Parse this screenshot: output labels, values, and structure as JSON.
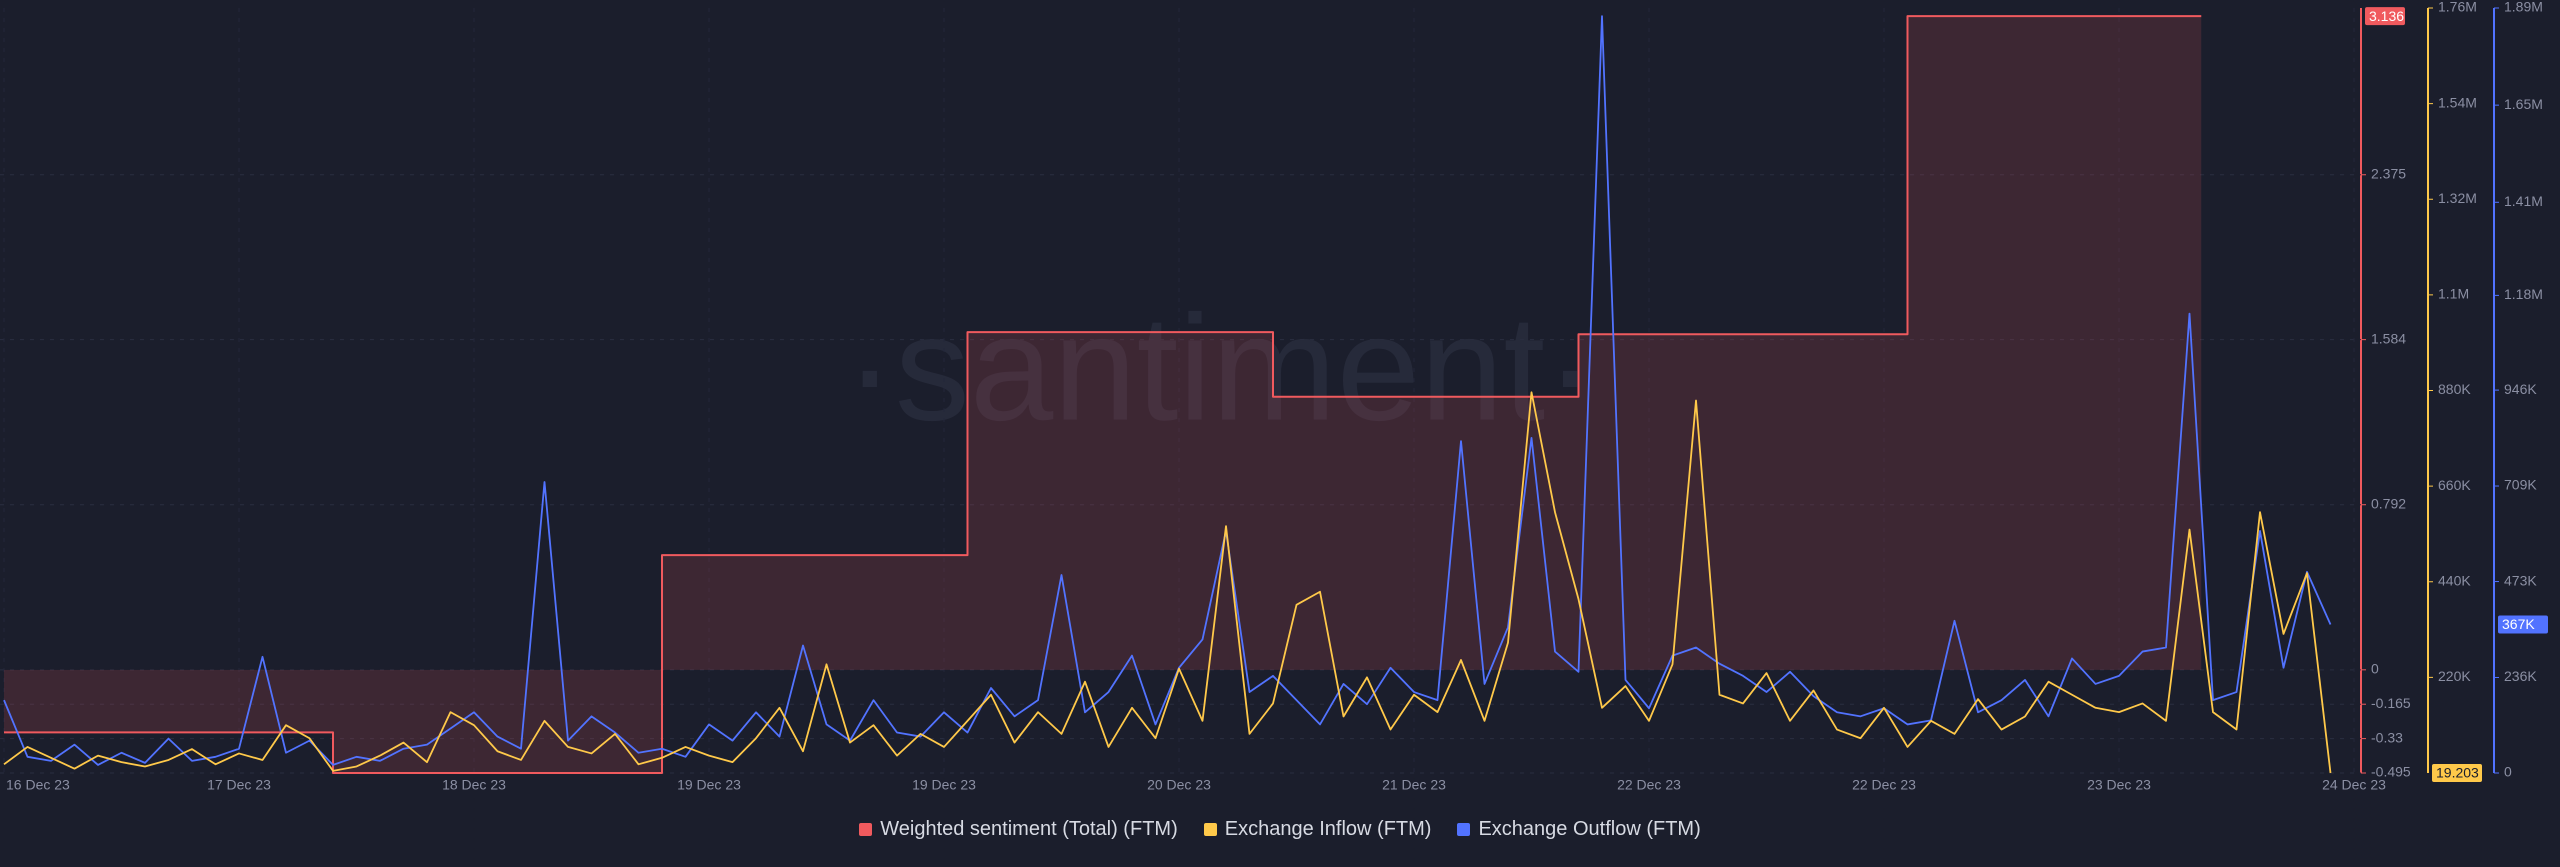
{
  "chart_data": {
    "type": "line",
    "watermark": "·santiment·",
    "categories": [
      "16 Dec 23",
      null,
      null,
      null,
      null,
      null,
      null,
      null,
      null,
      null,
      "17 Dec 23",
      null,
      null,
      null,
      null,
      null,
      null,
      null,
      null,
      null,
      "18 Dec 23",
      null,
      null,
      null,
      null,
      null,
      null,
      null,
      null,
      null,
      "19 Dec 23",
      null,
      null,
      null,
      null,
      null,
      null,
      null,
      null,
      null,
      "19 Dec 23",
      null,
      null,
      null,
      null,
      null,
      null,
      null,
      null,
      null,
      "20 Dec 23",
      null,
      null,
      null,
      null,
      null,
      null,
      null,
      null,
      null,
      "21 Dec 23",
      null,
      null,
      null,
      null,
      null,
      null,
      null,
      null,
      null,
      "22 Dec 23",
      null,
      null,
      null,
      null,
      null,
      null,
      null,
      null,
      null,
      "22 Dec 23",
      null,
      null,
      null,
      null,
      null,
      null,
      null,
      null,
      null,
      "23 Dec 23",
      null,
      null,
      null,
      null,
      null,
      null,
      null,
      null,
      null,
      "24 Dec 23"
    ],
    "ylim": [
      -0.495,
      3.175
    ],
    "yticks": [
      -0.495,
      -0.33,
      -0.165,
      0,
      0.792,
      1.584,
      2.375
    ],
    "y2lim": [
      0,
      1760000
    ],
    "y2ticks": [
      {
        "value": 220000,
        "label": "220K"
      },
      {
        "value": 440000,
        "label": "440K"
      },
      {
        "value": 660000,
        "label": "660K"
      },
      {
        "value": 880000,
        "label": "880K"
      },
      {
        "value": 1100000,
        "label": "1.1M"
      },
      {
        "value": 1320000,
        "label": "1.32M"
      },
      {
        "value": 1540000,
        "label": "1.54M"
      },
      {
        "value": 1760000,
        "label": "1.76M"
      }
    ],
    "y3lim": [
      0,
      1890000
    ],
    "y3ticks": [
      0,
      {
        "value": 236000,
        "label": "236K"
      },
      {
        "value": 473000,
        "label": "473K"
      },
      {
        "value": 709000,
        "label": "709K"
      },
      {
        "value": 946000,
        "label": "946K"
      },
      {
        "value": 1180000,
        "label": "1.18M"
      },
      {
        "value": 1410000,
        "label": "1.41M"
      },
      {
        "value": 1650000,
        "label": "1.65M"
      },
      {
        "value": 1890000,
        "label": "1.89M"
      }
    ],
    "grid": true,
    "series": [
      {
        "name": "Weighted sentiment (Total) (FTM)",
        "color": "#f05a5e",
        "axis": "y",
        "step": true,
        "values": [
          -0.3,
          -0.3,
          -0.3,
          -0.3,
          -0.3,
          -0.3,
          -0.3,
          -0.3,
          -0.3,
          -0.3,
          -0.3,
          -0.3,
          -0.3,
          -0.3,
          -0.495,
          -0.495,
          -0.495,
          -0.495,
          -0.495,
          -0.495,
          -0.495,
          -0.495,
          -0.495,
          -0.495,
          -0.495,
          -0.495,
          -0.495,
          -0.495,
          0.55,
          0.55,
          0.55,
          0.55,
          0.55,
          0.55,
          0.55,
          0.55,
          0.55,
          0.55,
          0.55,
          0.55,
          0.55,
          1.62,
          1.62,
          1.62,
          1.62,
          1.62,
          1.62,
          1.62,
          1.62,
          1.62,
          1.62,
          1.62,
          1.62,
          1.62,
          1.31,
          1.31,
          1.31,
          1.31,
          1.31,
          1.31,
          1.31,
          1.31,
          1.31,
          1.31,
          1.31,
          1.31,
          1.31,
          1.61,
          1.61,
          1.61,
          1.61,
          1.61,
          1.61,
          1.61,
          1.61,
          1.61,
          1.61,
          1.61,
          1.61,
          1.61,
          1.61,
          3.136,
          3.136,
          3.136,
          3.136,
          3.136,
          3.136,
          3.136,
          3.136,
          3.136,
          3.136,
          3.136,
          3.136,
          3.136,
          null,
          null,
          null,
          null,
          null,
          null,
          null
        ]
      },
      {
        "name": "Exchange Inflow (FTM)",
        "color": "#ffc94a",
        "axis": "y2",
        "values": [
          20000,
          60000,
          35000,
          10000,
          40000,
          25000,
          15000,
          30000,
          55000,
          20000,
          45000,
          30000,
          110000,
          80000,
          5000,
          15000,
          40000,
          70000,
          25000,
          140000,
          110000,
          50000,
          30000,
          120000,
          60000,
          45000,
          90000,
          20000,
          35000,
          60000,
          40000,
          25000,
          80000,
          150000,
          50000,
          250000,
          70000,
          110000,
          40000,
          90000,
          60000,
          120000,
          180000,
          70000,
          140000,
          90000,
          210000,
          60000,
          150000,
          80000,
          240000,
          120000,
          568000,
          90000,
          160000,
          387000,
          417000,
          130000,
          220000,
          100000,
          180000,
          140000,
          260000,
          120000,
          300000,
          876000,
          600000,
          400000,
          150000,
          200000,
          120000,
          250000,
          857000,
          180000,
          160000,
          230000,
          120000,
          190000,
          100000,
          80000,
          150000,
          60000,
          120000,
          90000,
          170000,
          100000,
          130000,
          210000,
          180000,
          150000,
          140000,
          160000,
          120000,
          560000,
          140000,
          100000,
          600000,
          320000,
          460000,
          19.203,
          null
        ]
      },
      {
        "name": "Exchange Outflow (FTM)",
        "color": "#5273ff",
        "axis": "y3",
        "values": [
          180000,
          40000,
          30000,
          70000,
          20000,
          50000,
          25000,
          85000,
          30000,
          40000,
          60000,
          287000,
          50000,
          80000,
          20000,
          40000,
          30000,
          60000,
          70000,
          110000,
          150000,
          90000,
          60000,
          719000,
          80000,
          140000,
          100000,
          50000,
          60000,
          40000,
          120000,
          80000,
          150000,
          90000,
          315000,
          120000,
          80000,
          180000,
          100000,
          90000,
          150000,
          100000,
          210000,
          140000,
          180000,
          489000,
          150000,
          200000,
          290000,
          120000,
          260000,
          330000,
          598000,
          200000,
          240000,
          180000,
          120000,
          220000,
          170000,
          260000,
          200000,
          180000,
          820000,
          220000,
          360000,
          828000,
          300000,
          250000,
          1870000,
          230000,
          160000,
          290000,
          310000,
          270000,
          240000,
          200000,
          250000,
          190000,
          150000,
          140000,
          160000,
          120000,
          130000,
          376000,
          150000,
          180000,
          230000,
          140000,
          283000,
          220000,
          240000,
          300000,
          310000,
          1135000,
          180000,
          200000,
          598000,
          260000,
          497000,
          367000,
          null
        ],
        "value_labels": [
          null,
          null,
          null,
          null,
          null,
          null,
          null,
          null,
          null,
          null,
          null,
          null,
          null,
          null,
          null,
          null,
          null,
          null,
          null,
          null,
          null,
          null,
          null,
          null,
          null,
          null,
          null,
          null,
          null,
          null,
          null,
          null,
          null,
          null,
          null,
          null,
          null,
          null,
          null,
          null,
          null,
          null,
          null,
          null,
          null,
          null,
          null,
          null,
          null,
          null,
          null,
          null,
          null,
          null,
          null,
          null,
          null,
          null,
          null,
          null,
          null,
          null,
          null,
          null,
          null,
          null,
          null,
          null,
          null,
          null,
          null,
          null,
          null,
          null,
          null,
          null,
          null,
          null,
          null,
          null,
          null,
          null,
          null,
          null,
          null,
          null,
          null,
          null,
          null,
          null,
          null,
          null,
          null,
          null,
          null,
          null,
          null,
          null,
          null,
          "367K",
          null
        ]
      }
    ]
  }
}
